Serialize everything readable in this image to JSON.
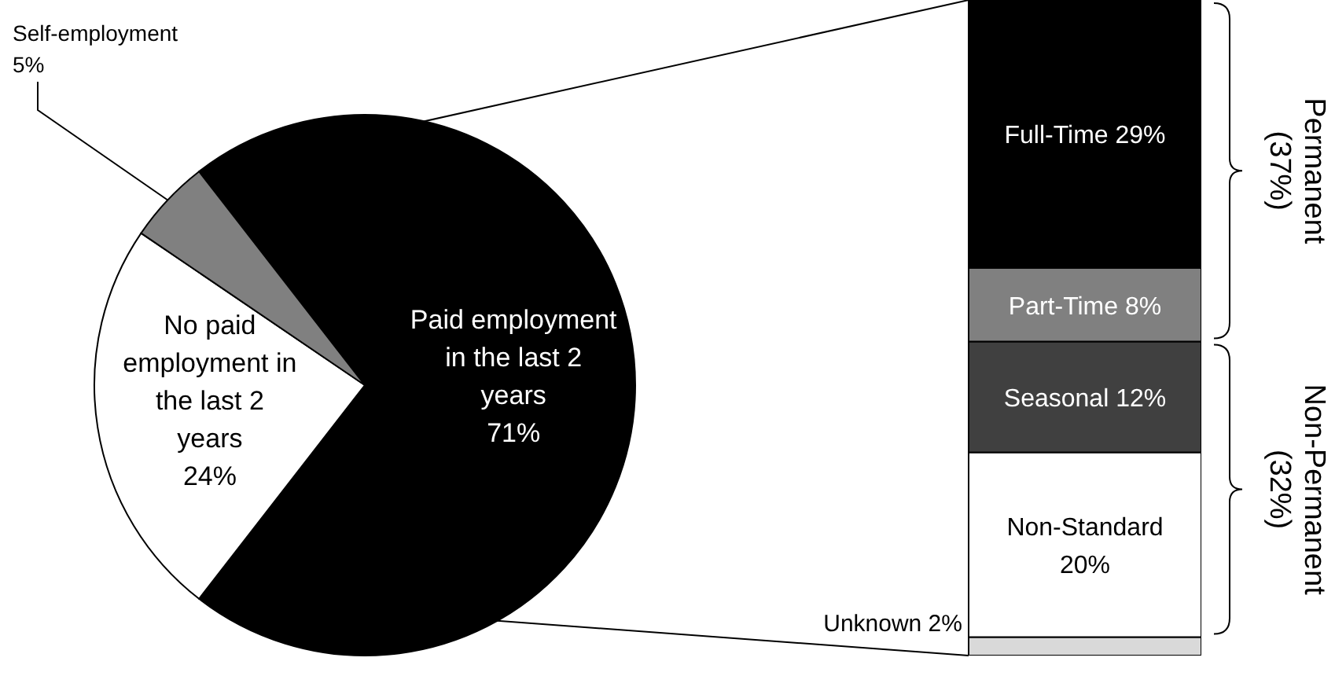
{
  "chart_data": [
    {
      "type": "pie",
      "categories": [
        "Paid employment in the last 2 years",
        "No paid employment in the last 2 years",
        "Self-employment"
      ],
      "values": [
        71,
        24,
        5
      ],
      "colors": [
        "#000000",
        "#ffffff",
        "#808080"
      ],
      "value_labels": [
        "71%",
        "24%",
        "5%"
      ]
    },
    {
      "type": "bar",
      "stacked": true,
      "categories": [
        null
      ],
      "series": [
        {
          "name": "Unknown",
          "color": "#d9d9d9",
          "values": [
            2
          ],
          "value_labels": [
            "2%"
          ]
        },
        {
          "name": "Non-Standard",
          "color": "#ffffff",
          "values": [
            20
          ],
          "value_labels": [
            "20%"
          ]
        },
        {
          "name": "Seasonal",
          "color": "#404040",
          "values": [
            12
          ],
          "value_labels": [
            "12%"
          ]
        },
        {
          "name": "Part-Time",
          "color": "#808080",
          "values": [
            8
          ],
          "value_labels": [
            "8%"
          ]
        },
        {
          "name": "Full-Time",
          "color": "#000000",
          "values": [
            29
          ],
          "value_labels": [
            "29%"
          ]
        }
      ],
      "annotations": [
        "Permanent (37%)",
        "Non-Permanent (32%)"
      ]
    }
  ]
}
